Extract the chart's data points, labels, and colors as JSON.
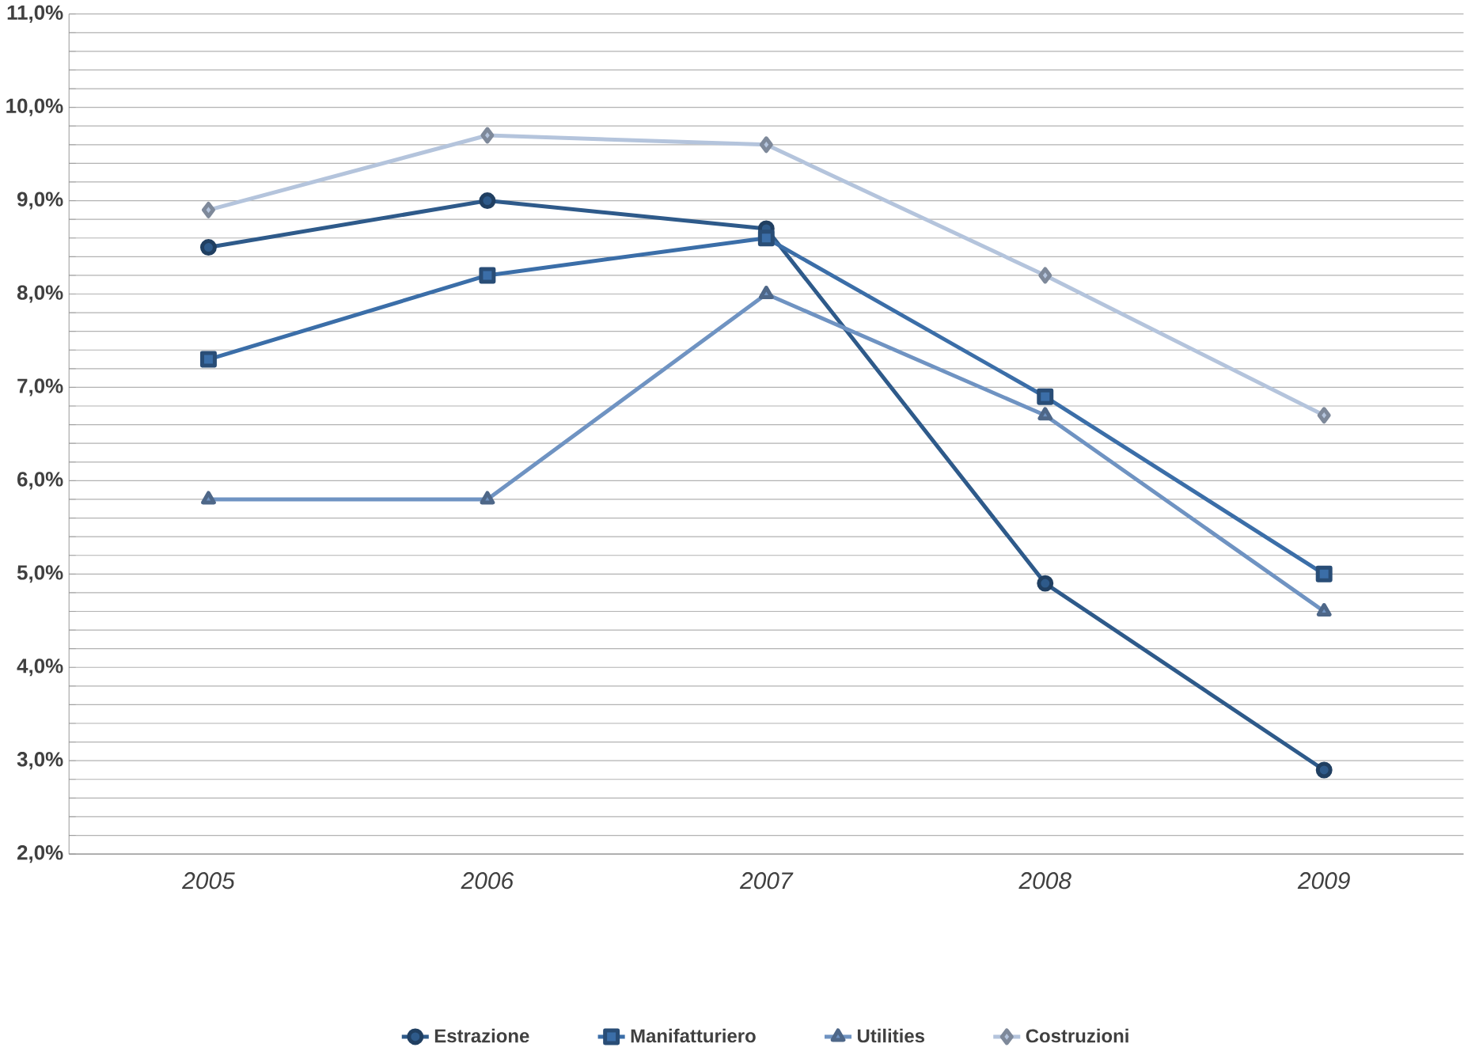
{
  "chart_data": {
    "type": "line",
    "categories": [
      "2005",
      "2006",
      "2007",
      "2008",
      "2009"
    ],
    "series": [
      {
        "name": "Estrazione",
        "color": "#2e5a8a",
        "marker": "circle",
        "values": [
          8.5,
          9.0,
          8.7,
          4.9,
          2.9
        ]
      },
      {
        "name": "Manifatturiero",
        "color": "#3b6ea8",
        "marker": "square",
        "values": [
          7.3,
          8.2,
          8.6,
          6.9,
          5.0
        ]
      },
      {
        "name": "Utilities",
        "color": "#6f93c2",
        "marker": "triangle",
        "values": [
          5.8,
          5.8,
          8.0,
          6.7,
          4.6
        ]
      },
      {
        "name": "Costruzioni",
        "color": "#b4c4dc",
        "marker": "diamond",
        "values": [
          8.9,
          9.7,
          9.6,
          8.2,
          6.7
        ]
      }
    ],
    "ylim": [
      2,
      11
    ],
    "yticks": [
      {
        "value": 2,
        "label": "2,0%"
      },
      {
        "value": 2.2,
        "label": null
      },
      {
        "value": 2.4,
        "label": null
      },
      {
        "value": 2.6,
        "label": null
      },
      {
        "value": 2.8,
        "label": null
      },
      {
        "value": 3,
        "label": "3,0%"
      },
      {
        "value": 3.2,
        "label": null
      },
      {
        "value": 3.4,
        "label": null
      },
      {
        "value": 3.6,
        "label": null
      },
      {
        "value": 3.8,
        "label": null
      },
      {
        "value": 4,
        "label": "4,0%"
      },
      {
        "value": 4.2,
        "label": null
      },
      {
        "value": 4.4,
        "label": null
      },
      {
        "value": 4.6,
        "label": null
      },
      {
        "value": 4.8,
        "label": null
      },
      {
        "value": 5,
        "label": "5,0%"
      },
      {
        "value": 5.2,
        "label": null
      },
      {
        "value": 5.4,
        "label": null
      },
      {
        "value": 5.6,
        "label": null
      },
      {
        "value": 5.8,
        "label": null
      },
      {
        "value": 6,
        "label": "6,0%"
      },
      {
        "value": 6.2,
        "label": null
      },
      {
        "value": 6.4,
        "label": null
      },
      {
        "value": 6.6,
        "label": null
      },
      {
        "value": 6.8,
        "label": null
      },
      {
        "value": 7,
        "label": "7,0%"
      },
      {
        "value": 7.2,
        "label": null
      },
      {
        "value": 7.4,
        "label": null
      },
      {
        "value": 7.6,
        "label": null
      },
      {
        "value": 7.8,
        "label": null
      },
      {
        "value": 8,
        "label": "8,0%"
      },
      {
        "value": 8.2,
        "label": null
      },
      {
        "value": 8.4,
        "label": null
      },
      {
        "value": 8.6,
        "label": null
      },
      {
        "value": 8.8,
        "label": null
      },
      {
        "value": 9,
        "label": "9,0%"
      },
      {
        "value": 9.2,
        "label": null
      },
      {
        "value": 9.4,
        "label": null
      },
      {
        "value": 9.6,
        "label": null
      },
      {
        "value": 9.8,
        "label": null
      },
      {
        "value": 10,
        "label": "10,0%"
      },
      {
        "value": 10.2,
        "label": null
      },
      {
        "value": 10.4,
        "label": null
      },
      {
        "value": 10.6,
        "label": null
      },
      {
        "value": 10.8,
        "label": null
      },
      {
        "value": 11,
        "label": "11,0%"
      }
    ],
    "grid": "y",
    "legend": "bottom",
    "line_style": "solid"
  }
}
